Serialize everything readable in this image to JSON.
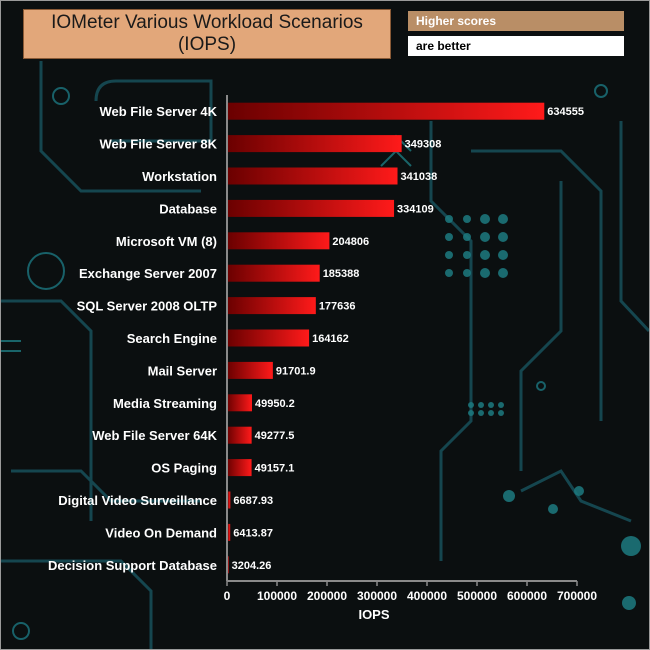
{
  "title_line1": "IOMeter Various Workload Scenarios",
  "title_line2": "(IOPS)",
  "legend": {
    "line1": "Higher scores",
    "line2": "are better"
  },
  "colors": {
    "bar_dark": "#7a0000",
    "bar_bright": "#ff1a1a",
    "title_bg": "#e2a77a",
    "legend_bg": "#b98e66",
    "circuit": "#1c6470"
  },
  "chart_data": {
    "type": "bar",
    "orientation": "horizontal",
    "categories": [
      "Web File Server 4K",
      "Web File Server 8K",
      "Workstation",
      "Database",
      "Microsoft VM (8)",
      "Exchange Server 2007",
      "SQL Server 2008 OLTP",
      "Search Engine",
      "Mail Server",
      "Media Streaming",
      "Web File Server 64K",
      "OS Paging",
      "Digital Video Surveillance",
      "Video On Demand",
      "Decision Support Database"
    ],
    "values": [
      634555,
      349308,
      341038,
      334109,
      204806,
      185388,
      177636,
      164162,
      91701.9,
      49950.2,
      49277.5,
      49157.1,
      6687.93,
      6413.87,
      3204.26
    ],
    "value_labels": [
      "634555",
      "349308",
      "341038",
      "334109",
      "204806",
      "185388",
      "177636",
      "164162",
      "91701.9",
      "49950.2",
      "49277.5",
      "49157.1",
      "6687.93",
      "6413.87",
      "3204.26"
    ],
    "xlabel": "IOPS",
    "ylabel": "",
    "xlim": [
      0,
      700000
    ],
    "xticks": [
      0,
      100000,
      200000,
      300000,
      400000,
      500000,
      600000,
      700000
    ],
    "xtick_labels": [
      "0",
      "100000",
      "200000",
      "300000",
      "400000",
      "500000",
      "600000",
      "700000"
    ],
    "grid": false
  }
}
